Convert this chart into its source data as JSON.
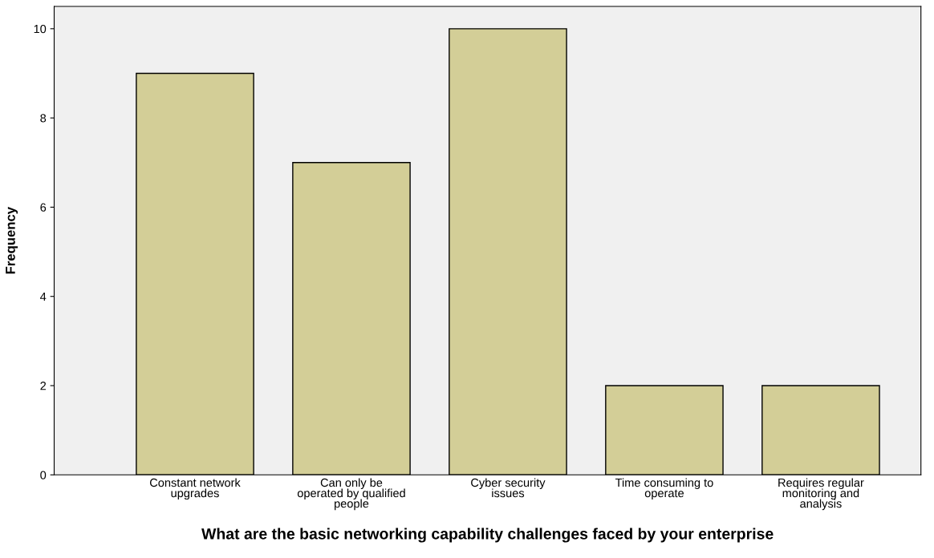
{
  "chart_data": {
    "type": "bar",
    "categories": [
      "Constant network\nupgrades",
      "Can only be\noperated by qualified\npeople",
      "Cyber security\nissues",
      "Time consuming to\noperate",
      "Requires regular\nmonitoring and\nanalysis"
    ],
    "values": [
      9,
      7,
      10,
      2,
      2
    ],
    "color": "#d3ce97",
    "xlabel": "What are the basic networking capability challenges faced by your enterprise",
    "ylabel": "Frequency",
    "ylim": [
      0,
      10.5
    ],
    "yticks": [
      0,
      2,
      4,
      6,
      8,
      10
    ],
    "grid": false,
    "legend": false
  }
}
